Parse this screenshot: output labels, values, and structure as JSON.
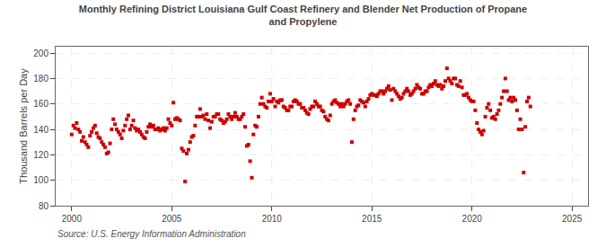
{
  "chart_data": {
    "type": "scatter",
    "title": "Monthly Refining District Louisiana Gulf Coast Refinery and Blender Net Production of Propane\nand Propylene",
    "y_label": "Thousand Barrels per Day",
    "annotations": [
      "Source: U.S. Energy Information Administration"
    ],
    "color": "#cc0000",
    "marker": "square",
    "grid": true,
    "xlim": [
      1999.2,
      2025.8
    ],
    "ylim": [
      80,
      205
    ],
    "xticks": [
      2000,
      2005,
      2010,
      2015,
      2020,
      2025
    ],
    "yticks": [
      80,
      100,
      120,
      140,
      160,
      180,
      200
    ],
    "x": [
      2000.0,
      2000.083,
      2000.167,
      2000.25,
      2000.333,
      2000.417,
      2000.5,
      2000.583,
      2000.667,
      2000.75,
      2000.833,
      2000.917,
      2001.0,
      2001.083,
      2001.167,
      2001.25,
      2001.333,
      2001.417,
      2001.5,
      2001.583,
      2001.667,
      2001.75,
      2001.833,
      2001.917,
      2002.0,
      2002.083,
      2002.167,
      2002.25,
      2002.333,
      2002.417,
      2002.5,
      2002.583,
      2002.667,
      2002.75,
      2002.833,
      2002.917,
      2003.0,
      2003.083,
      2003.167,
      2003.25,
      2003.333,
      2003.417,
      2003.5,
      2003.583,
      2003.667,
      2003.75,
      2003.833,
      2003.917,
      2004.0,
      2004.083,
      2004.167,
      2004.25,
      2004.333,
      2004.417,
      2004.5,
      2004.583,
      2004.667,
      2004.75,
      2004.833,
      2004.917,
      2005.0,
      2005.083,
      2005.167,
      2005.25,
      2005.333,
      2005.417,
      2005.5,
      2005.583,
      2005.667,
      2005.75,
      2005.833,
      2005.917,
      2006.0,
      2006.083,
      2006.167,
      2006.25,
      2006.333,
      2006.417,
      2006.5,
      2006.583,
      2006.667,
      2006.75,
      2006.833,
      2006.917,
      2007.0,
      2007.083,
      2007.167,
      2007.25,
      2007.333,
      2007.417,
      2007.5,
      2007.583,
      2007.667,
      2007.75,
      2007.833,
      2007.917,
      2008.0,
      2008.083,
      2008.167,
      2008.25,
      2008.333,
      2008.417,
      2008.5,
      2008.583,
      2008.667,
      2008.75,
      2008.833,
      2008.917,
      2009.0,
      2009.083,
      2009.167,
      2009.25,
      2009.333,
      2009.417,
      2009.5,
      2009.583,
      2009.667,
      2009.75,
      2009.833,
      2009.917,
      2010.0,
      2010.083,
      2010.167,
      2010.25,
      2010.333,
      2010.417,
      2010.5,
      2010.583,
      2010.667,
      2010.75,
      2010.833,
      2010.917,
      2011.0,
      2011.083,
      2011.167,
      2011.25,
      2011.333,
      2011.417,
      2011.5,
      2011.583,
      2011.667,
      2011.75,
      2011.833,
      2011.917,
      2012.0,
      2012.083,
      2012.167,
      2012.25,
      2012.333,
      2012.417,
      2012.5,
      2012.583,
      2012.667,
      2012.75,
      2012.833,
      2012.917,
      2013.0,
      2013.083,
      2013.167,
      2013.25,
      2013.333,
      2013.417,
      2013.5,
      2013.583,
      2013.667,
      2013.75,
      2013.833,
      2013.917,
      2014.0,
      2014.083,
      2014.167,
      2014.25,
      2014.333,
      2014.417,
      2014.5,
      2014.583,
      2014.667,
      2014.75,
      2014.833,
      2014.917,
      2015.0,
      2015.083,
      2015.167,
      2015.25,
      2015.333,
      2015.417,
      2015.5,
      2015.583,
      2015.667,
      2015.75,
      2015.833,
      2015.917,
      2016.0,
      2016.083,
      2016.167,
      2016.25,
      2016.333,
      2016.417,
      2016.5,
      2016.583,
      2016.667,
      2016.75,
      2016.833,
      2016.917,
      2017.0,
      2017.083,
      2017.167,
      2017.25,
      2017.333,
      2017.417,
      2017.5,
      2017.583,
      2017.667,
      2017.75,
      2017.833,
      2017.917,
      2018.0,
      2018.083,
      2018.167,
      2018.25,
      2018.333,
      2018.417,
      2018.5,
      2018.583,
      2018.667,
      2018.75,
      2018.833,
      2018.917,
      2019.0,
      2019.083,
      2019.167,
      2019.25,
      2019.333,
      2019.417,
      2019.5,
      2019.583,
      2019.667,
      2019.75,
      2019.833,
      2019.917,
      2020.0,
      2020.083,
      2020.167,
      2020.25,
      2020.333,
      2020.417,
      2020.5,
      2020.583,
      2020.667,
      2020.75,
      2020.833,
      2020.917,
      2021.0,
      2021.083,
      2021.167,
      2021.25,
      2021.333,
      2021.417,
      2021.5,
      2021.583,
      2021.667,
      2021.75,
      2021.833,
      2021.917,
      2022.0,
      2022.083,
      2022.167,
      2022.25,
      2022.333,
      2022.417,
      2022.5,
      2022.583,
      2022.667,
      2022.75,
      2022.833,
      2022.917
    ],
    "values": [
      136,
      143,
      141,
      145,
      140,
      138,
      131,
      134,
      130,
      128,
      126,
      135,
      138,
      141,
      143,
      137,
      134,
      133,
      130,
      128,
      126,
      121,
      122,
      129,
      140,
      148,
      144,
      140,
      138,
      136,
      133,
      139,
      143,
      148,
      151,
      140,
      143,
      147,
      141,
      139,
      140,
      138,
      136,
      134,
      133,
      138,
      142,
      144,
      142,
      143,
      140,
      140,
      141,
      139,
      140,
      141,
      139,
      141,
      148,
      145,
      143,
      161,
      148,
      149,
      148,
      147,
      125,
      123,
      99,
      121,
      124,
      130,
      134,
      135,
      143,
      150,
      150,
      156,
      150,
      151,
      148,
      152,
      147,
      141,
      146,
      150,
      150,
      152,
      152,
      148,
      147,
      145,
      146,
      148,
      152,
      150,
      148,
      150,
      153,
      150,
      148,
      148,
      150,
      152,
      142,
      127,
      128,
      115,
      102,
      136,
      143,
      142,
      150,
      160,
      165,
      160,
      158,
      157,
      162,
      168,
      162,
      164,
      158,
      162,
      161,
      163,
      163,
      158,
      157,
      155,
      155,
      158,
      158,
      162,
      163,
      162,
      160,
      160,
      157,
      157,
      155,
      153,
      152,
      156,
      158,
      158,
      162,
      160,
      158,
      158,
      155,
      154,
      150,
      148,
      147,
      151,
      160,
      162,
      163,
      161,
      160,
      158,
      160,
      158,
      160,
      162,
      163,
      160,
      130,
      148,
      155,
      158,
      159,
      163,
      162,
      161,
      158,
      162,
      164,
      167,
      168,
      167,
      167,
      166,
      168,
      170,
      170,
      168,
      170,
      172,
      174,
      171,
      163,
      172,
      170,
      168,
      166,
      164,
      165,
      168,
      170,
      172,
      170,
      167,
      168,
      170,
      172,
      175,
      173,
      172,
      168,
      168,
      170,
      170,
      173,
      175,
      174,
      176,
      178,
      175,
      174,
      175,
      172,
      174,
      178,
      188,
      180,
      178,
      176,
      180,
      180,
      175,
      174,
      178,
      173,
      167,
      167,
      168,
      165,
      163,
      162,
      162,
      155,
      145,
      140,
      138,
      136,
      139,
      150,
      157,
      160,
      155,
      149,
      150,
      148,
      152,
      155,
      160,
      165,
      170,
      180,
      170,
      163,
      165,
      162,
      165,
      163,
      155,
      140,
      148,
      140,
      106,
      142,
      162,
      165,
      158
    ]
  }
}
